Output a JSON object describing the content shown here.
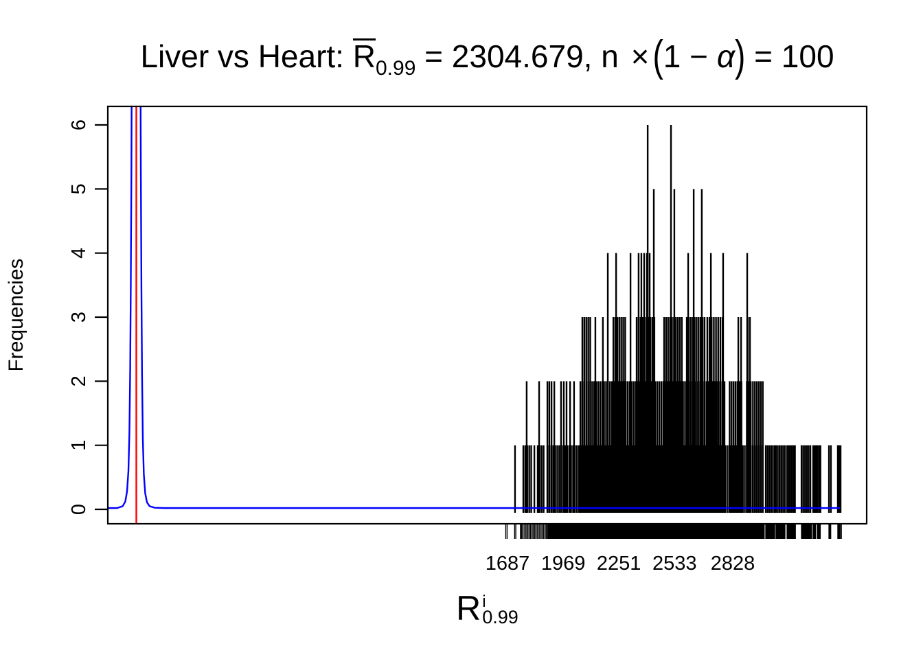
{
  "title": {
    "prefix": "Liver vs Heart: ",
    "rbar_base": "R",
    "rbar_sub": "0.99",
    "mid": " = 2304.679, n ",
    "times": "×",
    "paren_open": "(",
    "between": "1 − ",
    "alpha": "α",
    "paren_close": ")",
    "suffix": " = 100"
  },
  "x_axis": {
    "label_base": "R",
    "label_sup": "i",
    "label_sub": "0.99",
    "ticks": [
      1687,
      1969,
      2251,
      2533,
      2828
    ]
  },
  "y_axis": {
    "label": "Frequencies",
    "ticks": [
      0,
      1,
      2,
      3,
      4,
      5,
      6
    ]
  },
  "chart_data": {
    "type": "bar",
    "subtype": "frequency-spike-plot with null-density curve and threshold line",
    "title": "Liver vs Heart: R̄0.99 = 2304.679, n × (1 − α) = 100",
    "xlabel": "R^i_0.99",
    "ylabel": "Frequencies",
    "x_ticks": [
      1687,
      1969,
      2251,
      2533,
      2828
    ],
    "y_ticks": [
      0,
      1,
      2,
      3,
      4,
      5,
      6
    ],
    "xlim": [
      -337,
      3508
    ],
    "ylim": [
      -0.22,
      6.29
    ],
    "grid": false,
    "colors": {
      "spikes": "#000000",
      "density": "#0000ff",
      "vline": "#ff0000",
      "frame": "#000000"
    },
    "spikes": {
      "singles": [
        [
          1725,
          1
        ],
        [
          1823,
          1
        ],
        [
          1784,
          2
        ],
        [
          1847,
          2
        ],
        [
          1889,
          2
        ],
        [
          1899,
          2
        ],
        [
          1910,
          2
        ],
        [
          1924,
          2
        ],
        [
          1958,
          2
        ],
        [
          1972,
          2
        ],
        [
          1986,
          2
        ],
        [
          2004,
          2
        ],
        [
          2024,
          2
        ],
        [
          2132,
          3
        ],
        [
          2170,
          3
        ],
        [
          2195,
          4
        ],
        [
          2237,
          4
        ],
        [
          2310,
          4
        ],
        [
          2602,
          4
        ],
        [
          2717,
          4
        ],
        [
          2779,
          4
        ],
        [
          2901,
          4
        ],
        [
          2428,
          5
        ],
        [
          2532,
          5
        ],
        [
          2630,
          5
        ],
        [
          2671,
          5
        ],
        [
          2397,
          6
        ],
        [
          2515,
          6
        ]
      ],
      "runs": [
        {
          "from": 1767,
          "to": 1807,
          "step": 10,
          "h": 1
        },
        {
          "from": 1840,
          "to": 1870,
          "step": 10,
          "h": 1
        },
        {
          "from": 1889,
          "to": 2988,
          "step": 10,
          "h": 1
        },
        {
          "from": 2995,
          "to": 3040,
          "step": 9,
          "h": 1
        },
        {
          "from": 3047,
          "to": 3092,
          "step": 9,
          "h": 1
        },
        {
          "from": 3103,
          "to": 3145,
          "step": 8,
          "h": 1
        },
        {
          "from": 3176,
          "to": 3228,
          "step": 9,
          "h": 1
        },
        {
          "from": 3235,
          "to": 3249,
          "step": 7,
          "h": 1
        },
        {
          "from": 3256,
          "to": 3273,
          "step": 8,
          "h": 1
        },
        {
          "from": 3315,
          "to": 3325,
          "step": 10,
          "h": 1
        },
        {
          "from": 3360,
          "to": 3374,
          "step": 7,
          "h": 1
        },
        {
          "from": 2056,
          "to": 2790,
          "step": 10,
          "h": 2
        },
        {
          "from": 2812,
          "to": 2876,
          "step": 10,
          "h": 2
        },
        {
          "from": 2899,
          "to": 2920,
          "step": 10,
          "h": 2
        },
        {
          "from": 2930,
          "to": 2988,
          "step": 10,
          "h": 2
        },
        {
          "from": 2066,
          "to": 2115,
          "step": 10,
          "h": 3
        },
        {
          "from": 2223,
          "to": 2292,
          "step": 10,
          "h": 3
        },
        {
          "from": 2341,
          "to": 2431,
          "step": 10,
          "h": 3
        },
        {
          "from": 2480,
          "to": 2570,
          "step": 10,
          "h": 3
        },
        {
          "from": 2595,
          "to": 2689,
          "step": 10,
          "h": 3
        },
        {
          "from": 2699,
          "to": 2786,
          "step": 11,
          "h": 3
        },
        {
          "from": 2856,
          "to": 2870,
          "step": 14,
          "h": 3
        },
        {
          "from": 2904,
          "to": 2915,
          "step": 11,
          "h": 3
        },
        {
          "from": 2351,
          "to": 2407,
          "step": 14,
          "h": 4
        }
      ]
    },
    "density": {
      "points": [
        [
          -337,
          0.02
        ],
        [
          -290,
          0.02
        ],
        [
          -262,
          0.05
        ],
        [
          -249,
          0.12
        ],
        [
          -240,
          0.28
        ],
        [
          -233,
          0.6
        ],
        [
          -228,
          1.2
        ],
        [
          -224,
          2.2
        ],
        [
          -221,
          3.5
        ],
        [
          -218,
          5.2
        ],
        [
          -216,
          7
        ],
        [
          -206,
          20
        ],
        [
          -194,
          40
        ],
        [
          -182,
          20
        ],
        [
          -172,
          7
        ],
        [
          -170,
          5.2
        ],
        [
          -167,
          3.4
        ],
        [
          -164,
          2.1
        ],
        [
          -160,
          1.1
        ],
        [
          -155,
          0.55
        ],
        [
          -148,
          0.25
        ],
        [
          -139,
          0.11
        ],
        [
          -126,
          0.05
        ],
        [
          -100,
          0.025
        ],
        [
          -50,
          0.02
        ],
        [
          500,
          0.02
        ],
        [
          1500,
          0.02
        ],
        [
          2500,
          0.02
        ],
        [
          3371,
          0.02
        ]
      ]
    },
    "vline": {
      "x": -193
    },
    "rug": {
      "left_singles": [
        1678,
        1685,
        1723,
        1729,
        1752,
        1758,
        1763,
        1771,
        1779,
        1785,
        1791,
        1798,
        1804,
        1811,
        1817,
        1824,
        1830,
        1837,
        1843,
        1850,
        1857,
        1863,
        1870,
        1877,
        1883,
        3378
      ],
      "runs": [
        {
          "from": 1889,
          "to": 2988,
          "step": 3
        },
        {
          "from": 2995,
          "to": 3040,
          "step": 3
        },
        {
          "from": 3047,
          "to": 3092,
          "step": 3
        },
        {
          "from": 3103,
          "to": 3145,
          "step": 3
        },
        {
          "from": 3176,
          "to": 3228,
          "step": 3
        },
        {
          "from": 3235,
          "to": 3249,
          "step": 3
        },
        {
          "from": 3256,
          "to": 3273,
          "step": 3
        },
        {
          "from": 3315,
          "to": 3325,
          "step": 3
        },
        {
          "from": 3360,
          "to": 3374,
          "step": 3
        }
      ]
    }
  }
}
